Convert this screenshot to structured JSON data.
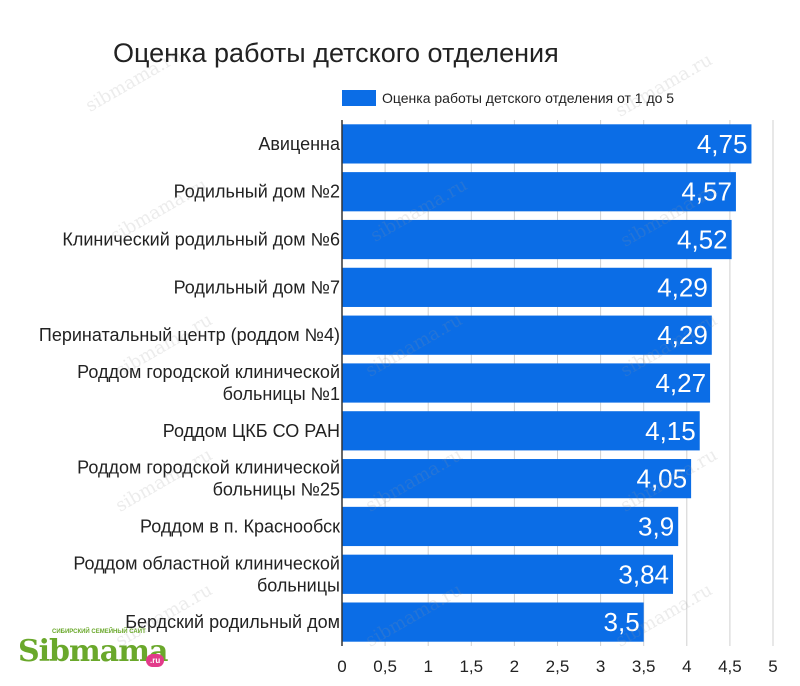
{
  "chart_data": {
    "type": "bar",
    "orientation": "horizontal",
    "title": "Оценка работы детского отделения",
    "categories": [
      "Авиценна",
      "Родильный дом №2",
      "Клинический родильный дом №6",
      "Родильный дом №7",
      "Перинатальный центр (роддом №4)",
      "Роддом городской клинической больницы №1",
      "Роддом ЦКБ СО РАН",
      "Роддом городской клинической больницы №25",
      "Роддом в п. Краснообск",
      "Роддом областной клинической больницы",
      "Бердский родильный дом"
    ],
    "category_lines": [
      [
        "Авиценна"
      ],
      [
        "Родильный дом №2"
      ],
      [
        "Клинический родильный дом №6"
      ],
      [
        "Родильный дом №7"
      ],
      [
        "Перинатальный центр (роддом №4)"
      ],
      [
        "Роддом городской клинической",
        "больницы №1"
      ],
      [
        "Роддом ЦКБ СО РАН"
      ],
      [
        "Роддом городской клинической",
        "больницы №25"
      ],
      [
        "Роддом в п. Краснообск"
      ],
      [
        "Роддом областной клинической",
        "больницы"
      ],
      [
        "Бердский родильный дом"
      ]
    ],
    "series": [
      {
        "name": "Оценка работы детского отделения от 1 до 5",
        "values": [
          4.75,
          4.57,
          4.52,
          4.29,
          4.29,
          4.27,
          4.15,
          4.05,
          3.9,
          3.84,
          3.5
        ],
        "labels": [
          "4,75",
          "4,57",
          "4,52",
          "4,29",
          "4,29",
          "4,27",
          "4,15",
          "4,05",
          "3,9",
          "3,84",
          "3,5"
        ]
      }
    ],
    "xlim": [
      0,
      5
    ],
    "x_ticks": [
      0,
      0.5,
      1,
      1.5,
      2,
      2.5,
      3,
      3.5,
      4,
      4.5,
      5
    ],
    "x_tick_labels": [
      "0",
      "0,5",
      "1",
      "1,5",
      "2",
      "2,5",
      "3",
      "3,5",
      "4",
      "4,5",
      "5"
    ],
    "grid": "vertical",
    "legend_position": "top",
    "bar_color": "#0b6de6",
    "grid_color": "#d0d0d0"
  },
  "watermark": "sibmama.ru",
  "logo": {
    "name": "Sibmama",
    "tagline": "СИБИРСКИЙ СЕМЕЙНЫЙ САЙТ",
    "suffix": ".ru"
  }
}
